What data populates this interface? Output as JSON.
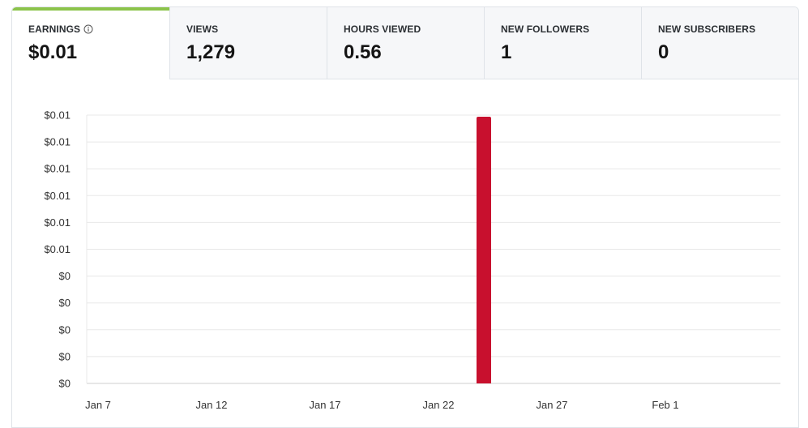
{
  "tabs": [
    {
      "label": "EARNINGS",
      "value": "$0.01",
      "has_info_icon": true,
      "active": true
    },
    {
      "label": "VIEWS",
      "value": "1,279"
    },
    {
      "label": "HOURS VIEWED",
      "value": "0.56"
    },
    {
      "label": "NEW FOLLOWERS",
      "value": "1"
    },
    {
      "label": "NEW SUBSCRIBERS",
      "value": "0"
    }
  ],
  "colors": {
    "accent": "#8bc34a",
    "bar": "#c8102e",
    "grid": "#e8e8e8"
  },
  "chart_data": {
    "type": "bar",
    "title": "",
    "xlabel": "",
    "ylabel": "",
    "x_tick_labels": [
      "Jan 7",
      "Jan 12",
      "Jan 17",
      "Jan 22",
      "Jan 27",
      "Feb 1"
    ],
    "y_tick_labels": [
      "$0.01",
      "$0.01",
      "$0.01",
      "$0.01",
      "$0.01",
      "$0.01",
      "$0",
      "$0",
      "$0",
      "$0",
      "$0"
    ],
    "ylim": [
      0,
      0.01
    ],
    "x_range": [
      "2024-01-07",
      "2024-02-05"
    ],
    "series": [
      {
        "color": "#c8102e",
        "points": [
          {
            "date": "2024-01-24",
            "value": 0.01
          }
        ]
      }
    ],
    "grid": true,
    "legend": "none"
  }
}
